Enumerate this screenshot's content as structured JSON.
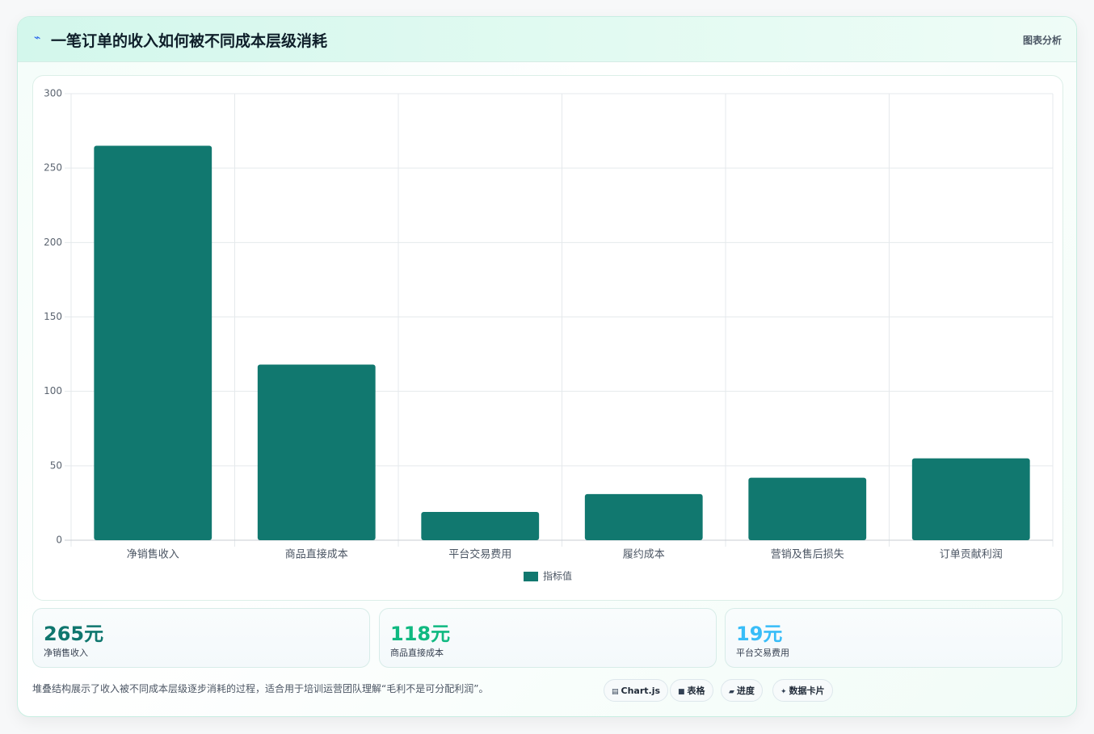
{
  "header": {
    "title": "一笔订单的收入如何被不同成本层级消耗",
    "label": "图表分析"
  },
  "chart_data": {
    "type": "bar",
    "categories": [
      "净销售收入",
      "商品直接成本",
      "平台交易费用",
      "履约成本",
      "营销及售后损失",
      "订单贡献利润"
    ],
    "series": [
      {
        "name": "指标值",
        "color": "#11786f",
        "values": [
          265,
          118,
          19,
          31,
          42,
          55
        ]
      }
    ],
    "ylim": [
      0,
      300
    ],
    "yticks": [
      0,
      50,
      100,
      150,
      200,
      250,
      300
    ],
    "grid": true,
    "legend": "bottom"
  },
  "stats": [
    {
      "value": "265元",
      "label": "净销售收入"
    },
    {
      "value": "118元",
      "label": "商品直接成本"
    },
    {
      "value": "19元",
      "label": "平台交易费用"
    }
  ],
  "footer": {
    "note": "堆叠结构展示了收入被不同成本层级逐步消耗的过程，适合用于培训运营团队理解“毛利不是可分配利润”。",
    "tags": [
      "Chart.js",
      "表格",
      "进度",
      "数据卡片"
    ]
  }
}
